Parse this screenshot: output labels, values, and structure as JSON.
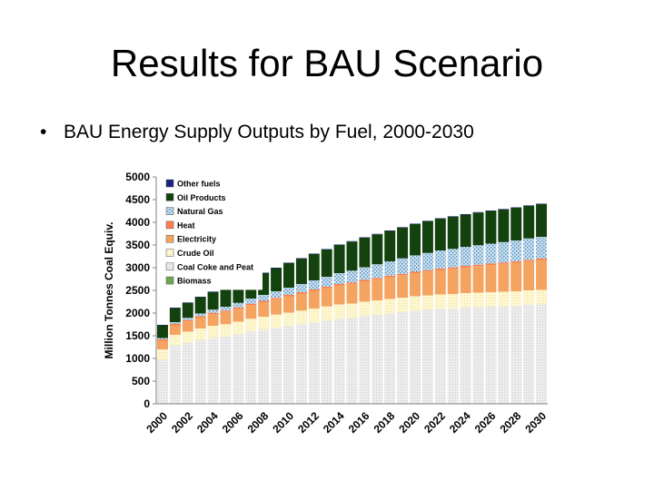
{
  "slide": {
    "title": "Results for BAU Scenario",
    "bullet_marker": "•",
    "bullet_text": "BAU Energy Supply Outputs by Fuel, 2000-2030"
  },
  "chart_data": {
    "type": "bar",
    "stacked": true,
    "title": "",
    "xlabel": "",
    "ylabel": "Million Tonnes Coal Equiv.",
    "ylim": [
      0,
      5000
    ],
    "yticks": [
      0,
      500,
      1000,
      1500,
      2000,
      2500,
      3000,
      3500,
      4000,
      4500,
      5000
    ],
    "legend_position": "top-left",
    "grid": false,
    "x_tick_labels": [
      "2000",
      "2002",
      "2004",
      "2006",
      "2008",
      "2010",
      "2012",
      "2014",
      "2016",
      "2018",
      "2020",
      "2022",
      "2024",
      "2026",
      "2028",
      "2030"
    ],
    "categories": [
      "2000",
      "2001",
      "2002",
      "2003",
      "2004",
      "2005",
      "2006",
      "2007",
      "2008",
      "2009",
      "2010",
      "2011",
      "2012",
      "2013",
      "2014",
      "2015",
      "2016",
      "2017",
      "2018",
      "2019",
      "2020",
      "2021",
      "2022",
      "2023",
      "2024",
      "2025",
      "2026",
      "2027",
      "2028",
      "2029",
      "2030"
    ],
    "series": [
      {
        "name": "Biomass",
        "color": "#6aa84f",
        "values": [
          10,
          10,
          10,
          10,
          10,
          10,
          10,
          10,
          10,
          10,
          10,
          10,
          10,
          10,
          10,
          10,
          10,
          10,
          10,
          10,
          10,
          10,
          10,
          10,
          10,
          10,
          10,
          10,
          10,
          10,
          10
        ]
      },
      {
        "name": "Coal Coke and Peat",
        "color": "#e8e8e8",
        "values": [
          960,
          1270,
          1330,
          1390,
          1440,
          1470,
          1520,
          1580,
          1620,
          1660,
          1700,
          1740,
          1780,
          1820,
          1860,
          1880,
          1920,
          1950,
          1980,
          2010,
          2040,
          2060,
          2080,
          2090,
          2110,
          2120,
          2130,
          2140,
          2150,
          2170,
          2180
        ]
      },
      {
        "name": "Crude Oil",
        "color": "#fdf5c8",
        "values": [
          230,
          240,
          250,
          260,
          270,
          275,
          280,
          285,
          290,
          295,
          300,
          305,
          310,
          315,
          320,
          320,
          320,
          320,
          320,
          320,
          320,
          320,
          320,
          320,
          320,
          320,
          320,
          320,
          320,
          320,
          320
        ]
      },
      {
        "name": "Electricity",
        "color": "#f4a460",
        "values": [
          190,
          210,
          225,
          240,
          255,
          270,
          285,
          300,
          320,
          340,
          360,
          375,
          390,
          405,
          420,
          435,
          450,
          465,
          480,
          495,
          510,
          525,
          540,
          555,
          570,
          585,
          600,
          615,
          630,
          645,
          660
        ]
      },
      {
        "name": "Heat",
        "color": "#ff7f50",
        "values": [
          30,
          30,
          30,
          30,
          30,
          30,
          30,
          30,
          30,
          30,
          30,
          30,
          30,
          30,
          30,
          30,
          30,
          30,
          30,
          30,
          30,
          30,
          30,
          30,
          30,
          30,
          30,
          30,
          30,
          30,
          30
        ]
      },
      {
        "name": "Natural Gas",
        "color": "#b9d8ee",
        "values": [
          30,
          40,
          50,
          60,
          70,
          85,
          100,
          115,
          130,
          145,
          160,
          180,
          200,
          220,
          240,
          260,
          280,
          300,
          320,
          340,
          360,
          380,
          400,
          410,
          420,
          430,
          440,
          450,
          460,
          470,
          480
        ]
      },
      {
        "name": "Oil Products",
        "color": "#13420f",
        "values": [
          280,
          310,
          330,
          360,
          390,
          410,
          430,
          450,
          480,
          510,
          540,
          560,
          580,
          600,
          620,
          640,
          650,
          660,
          670,
          680,
          690,
          700,
          700,
          710,
          710,
          720,
          720,
          720,
          720,
          720,
          720
        ]
      },
      {
        "name": "Other fuels",
        "color": "#1a237e",
        "values": [
          10,
          10,
          10,
          10,
          10,
          10,
          10,
          10,
          10,
          10,
          10,
          10,
          10,
          10,
          10,
          10,
          10,
          10,
          10,
          10,
          10,
          10,
          10,
          10,
          10,
          10,
          10,
          10,
          10,
          10,
          10
        ]
      }
    ]
  }
}
